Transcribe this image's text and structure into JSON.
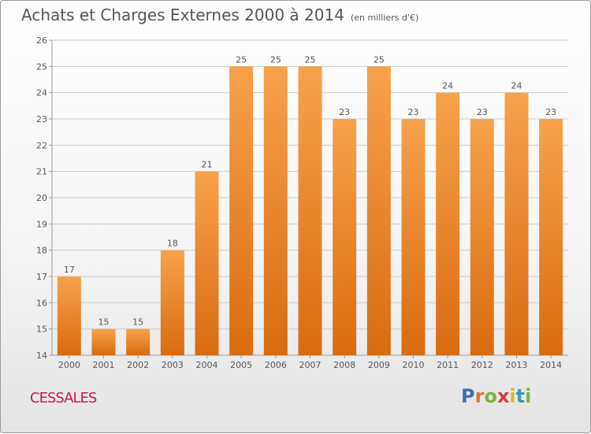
{
  "header": {
    "title": "Achats et Charges Externes 2000 à 2014",
    "subtitle": "(en milliers d'€)"
  },
  "footer": {
    "place": "CESSALES",
    "brand": "Proxiti"
  },
  "colors": {
    "bar_top": "#f7a24c",
    "bar_bottom": "#d96b10",
    "grid": "#cccccc",
    "axis": "#999999",
    "label": "#555555",
    "place": "#c2185b"
  },
  "chart_data": {
    "type": "bar",
    "categories": [
      "2000",
      "2001",
      "2002",
      "2003",
      "2004",
      "2005",
      "2006",
      "2007",
      "2008",
      "2009",
      "2010",
      "2011",
      "2012",
      "2013",
      "2014"
    ],
    "values": [
      17,
      15,
      15,
      18,
      21,
      25,
      25,
      25,
      23,
      25,
      23,
      24,
      23,
      24,
      23
    ],
    "title": "Achats et Charges Externes 2000 à 2014",
    "xlabel": "",
    "ylabel": "",
    "ylim": [
      14,
      26
    ],
    "yticks": [
      14,
      15,
      16,
      17,
      18,
      19,
      20,
      21,
      22,
      23,
      24,
      25,
      26
    ],
    "grid": true,
    "data_labels": true
  }
}
